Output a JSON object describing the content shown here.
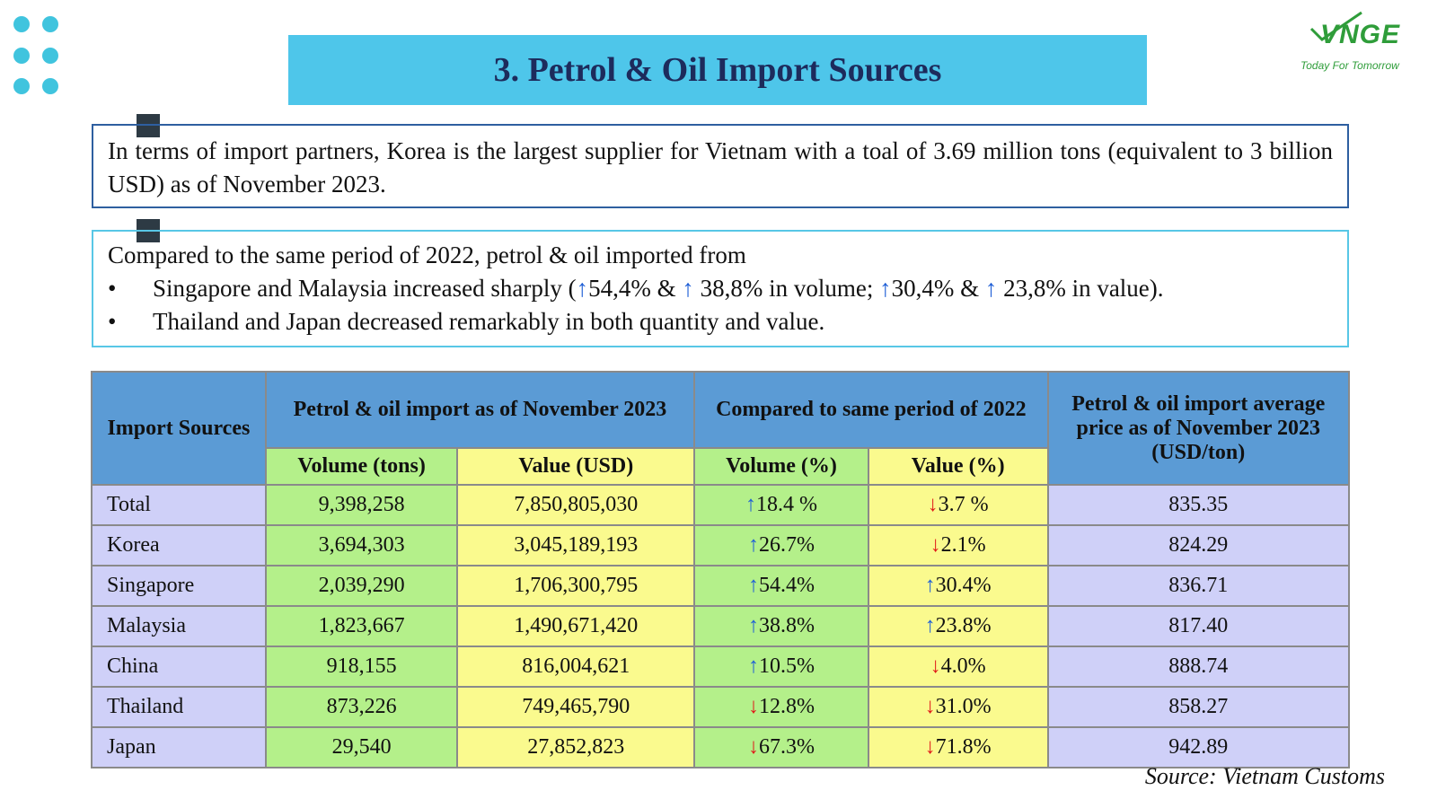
{
  "title": "3. Petrol & Oil Import Sources",
  "logo": {
    "name": "VNGE",
    "tagline": "Today For Tomorrow"
  },
  "box1": {
    "text": "In terms of import partners, Korea is the largest supplier for Vietnam with a toal of 3.69 million tons (equivalent to 3 billion USD) as of November 2023."
  },
  "box2": {
    "intro": "Compared to the same period of 2022, petrol & oil imported from",
    "bullet1": {
      "t1": "Singapore and Malaysia increased sharply (",
      "a1": "↑",
      "t2": "54,4% & ",
      "a2": "↑",
      "t3": " 38,8% in volume; ",
      "a3": "↑",
      "t4": "30,4% & ",
      "a4": "↑",
      "t5": " 23,8% in value)."
    },
    "bullet2": "Thailand and Japan decreased remarkably in both quantity and value.",
    "bullet_char": "•"
  },
  "table": {
    "h_source": "Import Sources",
    "h_import": "Petrol & oil import as of November 2023",
    "h_compare": "Compared to same period of 2022",
    "h_price": "Petrol & oil import average price as of November 2023 (USD/ton)",
    "h_vol": "Volume (tons)",
    "h_val": "Value (USD)",
    "h_volpct": "Volume (%)",
    "h_valpct": "Value (%)",
    "rows": [
      {
        "source": "Total",
        "volume": "9,398,258",
        "value": "7,850,805,030",
        "vol_arrow": "↑",
        "vol_pct": "18.4 %",
        "val_arrow": "↓",
        "val_pct": "3.7 %",
        "price": "835.35"
      },
      {
        "source": "Korea",
        "volume": "3,694,303",
        "value": "3,045,189,193",
        "vol_arrow": "↑",
        "vol_pct": "26.7%",
        "val_arrow": "↓",
        "val_pct": "2.1%",
        "price": "824.29"
      },
      {
        "source": "Singapore",
        "volume": "2,039,290",
        "value": "1,706,300,795",
        "vol_arrow": "↑",
        "vol_pct": "54.4%",
        "val_arrow": "↑",
        "val_pct": "30.4%",
        "price": "836.71"
      },
      {
        "source": "Malaysia",
        "volume": "1,823,667",
        "value": "1,490,671,420",
        "vol_arrow": "↑",
        "vol_pct": "38.8%",
        "val_arrow": "↑",
        "val_pct": "23.8%",
        "price": "817.40"
      },
      {
        "source": "China",
        "volume": "918,155",
        "value": "816,004,621",
        "vol_arrow": "↑",
        "vol_pct": "10.5%",
        "val_arrow": "↓",
        "val_pct": "4.0%",
        "price": "888.74"
      },
      {
        "source": "Thailand",
        "volume": "873,226",
        "value": "749,465,790",
        "vol_arrow": "↓",
        "vol_pct": "12.8%",
        "val_arrow": "↓",
        "val_pct": "31.0%",
        "price": "858.27"
      },
      {
        "source": "Japan",
        "volume": "29,540",
        "value": "27,852,823",
        "vol_arrow": "↓",
        "vol_pct": "67.3%",
        "val_arrow": "↓",
        "val_pct": "71.8%",
        "price": "942.89"
      }
    ]
  },
  "source_note": "Source: Vietnam Customs",
  "colors": {
    "title_bg": "#4ec6ea",
    "header_blue": "#5b9bd5",
    "green": "#b4f08a",
    "yellow": "#fafa8e",
    "lavender": "#cfd0f8",
    "up": "#1f5fd6",
    "down": "#e01818"
  }
}
